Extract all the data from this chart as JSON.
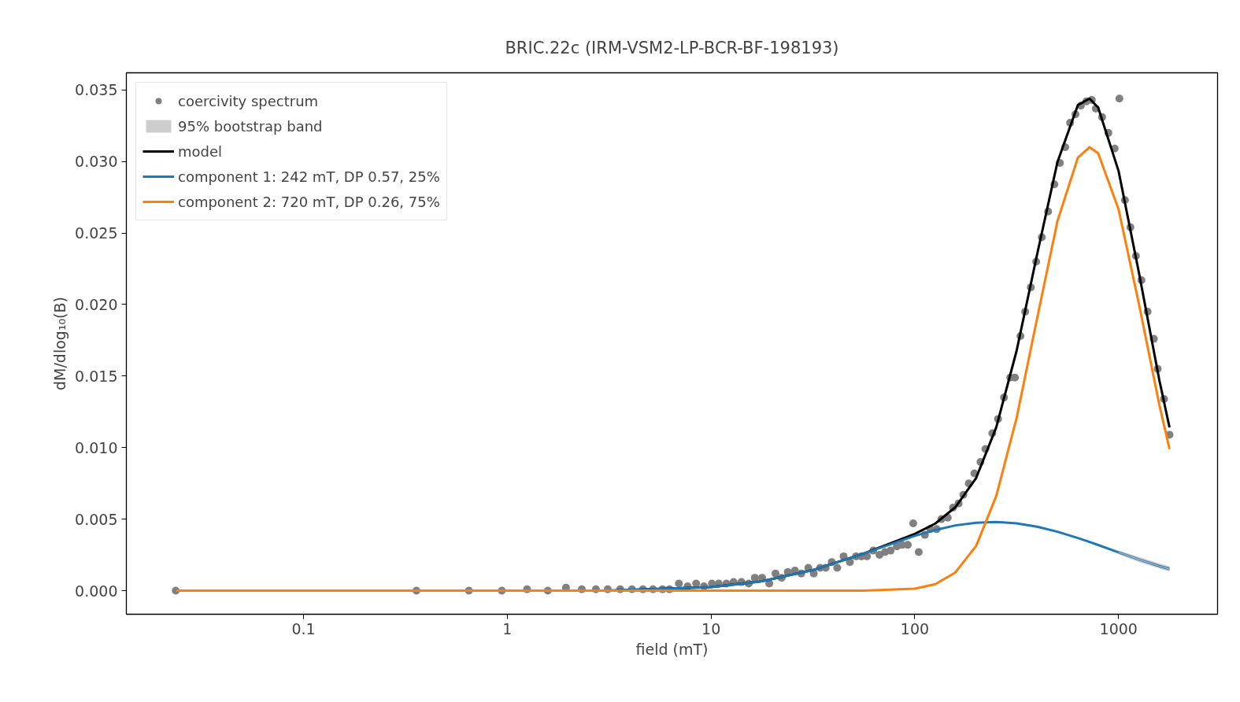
{
  "chart_data": {
    "type": "scatter",
    "title": "BRIC.22c (IRM-VSM2-LP-BCR-BF-198193)",
    "xlabel": "field (mT)",
    "ylabel": "dM/dlog₁₀(B)",
    "log": "x",
    "grid": false,
    "legend": "top left",
    "marker": "circle",
    "xlim": [
      0.0135,
      3060
    ],
    "ylim": [
      -0.00165,
      0.0362
    ],
    "xticks": [
      {
        "value": 0.1,
        "label": "0.1"
      },
      1,
      10,
      100,
      1000
    ],
    "yticks": [
      {
        "value": 0,
        "label": "0.000"
      },
      {
        "value": 0.005,
        "label": "0.005"
      },
      {
        "value": 0.01,
        "label": "0.010"
      },
      {
        "value": 0.015,
        "label": "0.015"
      },
      {
        "value": 0.02,
        "label": "0.020"
      },
      {
        "value": 0.025,
        "label": "0.025"
      },
      {
        "value": 0.03,
        "label": "0.030"
      },
      {
        "value": 0.035,
        "label": "0.035"
      }
    ],
    "series": [
      {
        "name": "coercivity spectrum",
        "color": "#808080",
        "x": [
          0.0236,
          0.358,
          0.648,
          0.94,
          1.25,
          1.58,
          1.94,
          2.32,
          2.72,
          3.11,
          3.58,
          4.09,
          4.63,
          5.19,
          5.78,
          6.25,
          6.95,
          7.67,
          8.45,
          9.23,
          10.1,
          10.9,
          11.9,
          12.9,
          14.1,
          15.3,
          16.4,
          17.8,
          19.3,
          20.7,
          22.2,
          23.8,
          25.8,
          27.7,
          30.0,
          31.9,
          34.3,
          36.5,
          39.1,
          41.6,
          44.7,
          48.0,
          51.5,
          54.7,
          58.2,
          62.5,
          67.1,
          71.4,
          76.0,
          81.6,
          86.7,
          92.3,
          98.2,
          104.5,
          112,
          119,
          128,
          135,
          145,
          154,
          164,
          173,
          184,
          196,
          210,
          222,
          240,
          256,
          274,
          294,
          310,
          330,
          348,
          371,
          394,
          420,
          451,
          484,
          515,
          547,
          578,
          614,
          653,
          695,
          739,
          773,
          830,
          891,
          957,
          1009,
          1074,
          1143,
          1216,
          1294,
          1388,
          1489,
          1556,
          1671,
          1778
        ],
        "values": [
          0,
          0,
          0,
          0,
          0.0001,
          0,
          0.0002,
          0.0001,
          0.0001,
          0.0001,
          0.0001,
          0.0001,
          0.0001,
          0.0001,
          0.0001,
          0.0001,
          0.0005,
          0.0003,
          0.0005,
          0.0003,
          0.0005,
          0.0005,
          0.0005,
          0.0006,
          0.0006,
          0.0005,
          0.0009,
          0.0009,
          0.0005,
          0.0012,
          0.0009,
          0.0013,
          0.0014,
          0.0012,
          0.0016,
          0.0012,
          0.0016,
          0.0016,
          0.002,
          0.0016,
          0.0024,
          0.002,
          0.0024,
          0.0024,
          0.0024,
          0.0028,
          0.0025,
          0.0027,
          0.0028,
          0.0031,
          0.0032,
          0.0032,
          0.0047,
          0.0027,
          0.0039,
          0.0043,
          0.0043,
          0.005,
          0.0051,
          0.0058,
          0.0061,
          0.0067,
          0.0075,
          0.0082,
          0.009,
          0.0099,
          0.011,
          0.012,
          0.0135,
          0.0149,
          0.0149,
          0.0178,
          0.0195,
          0.0212,
          0.023,
          0.0247,
          0.0265,
          0.0284,
          0.0299,
          0.031,
          0.0327,
          0.0333,
          0.0339,
          0.0342,
          0.0343,
          0.0337,
          0.0331,
          0.032,
          0.0309,
          0.0344,
          0.0273,
          0.0254,
          0.0234,
          0.0217,
          0.0195,
          0.0176,
          0.0155,
          0.0134,
          0.0109
        ]
      },
      {
        "name": "95% bootstrap band",
        "type": "line",
        "color": "#c0c0c0",
        "x": [
          1000,
          1259,
          1585,
          1778
        ],
        "values": [
          0.00268,
          0.00218,
          0.00172,
          0.00151
        ],
        "lower": [
          0.00255,
          0.002,
          0.00155,
          0.00132
        ],
        "upper": [
          0.0028,
          0.00235,
          0.0019,
          0.0017
        ],
        "marker": "none"
      },
      {
        "name": "model",
        "type": "line",
        "marker": "none",
        "color": "#000000",
        "x": [
          0.0236,
          1,
          3.16,
          10,
          17.8,
          31.6,
          56.2,
          100,
          126,
          158,
          200,
          251,
          316,
          398,
          501,
          631,
          720,
          794,
          1000,
          1259,
          1585,
          1778
        ],
        "values": [
          0,
          0,
          0,
          0.00025,
          0.00066,
          0.00144,
          0.00259,
          0.00397,
          0.00469,
          0.00583,
          0.00788,
          0.01142,
          0.01678,
          0.02349,
          0.02995,
          0.03394,
          0.0344,
          0.03377,
          0.02933,
          0.02221,
          0.01471,
          0.01141
        ]
      },
      {
        "name": "component 1: 242 mT, DP 0.57, 25%",
        "type": "line",
        "marker": "none",
        "color": "#1f77b4",
        "x": [
          0.0236,
          1,
          3.16,
          10,
          17.8,
          31.6,
          56.2,
          100,
          126,
          158,
          200,
          251,
          316,
          398,
          501,
          631,
          720,
          794,
          1000,
          1259,
          1585,
          1778
        ],
        "values": [
          0,
          0,
          0,
          0.00025,
          0.00066,
          0.00144,
          0.00259,
          0.00383,
          0.00424,
          0.00456,
          0.00475,
          0.0048,
          0.0047,
          0.00447,
          0.00412,
          0.00368,
          0.0034,
          0.00319,
          0.00268,
          0.00218,
          0.00172,
          0.00151
        ]
      },
      {
        "name": "component 2: 720 mT, DP 0.26, 75%",
        "type": "line",
        "marker": "none",
        "color": "#ff7f0e",
        "x": [
          0.0236,
          1,
          3.16,
          10,
          17.8,
          31.6,
          56.2,
          100,
          126,
          158,
          200,
          251,
          316,
          398,
          501,
          631,
          720,
          794,
          1000,
          1259,
          1585,
          1778
        ],
        "values": [
          0,
          0,
          0,
          0,
          0,
          0,
          0,
          0.00014,
          0.00045,
          0.00127,
          0.00313,
          0.00662,
          0.01208,
          0.01902,
          0.02583,
          0.03026,
          0.031,
          0.03058,
          0.02665,
          0.02003,
          0.01299,
          0.0099
        ]
      }
    ]
  }
}
